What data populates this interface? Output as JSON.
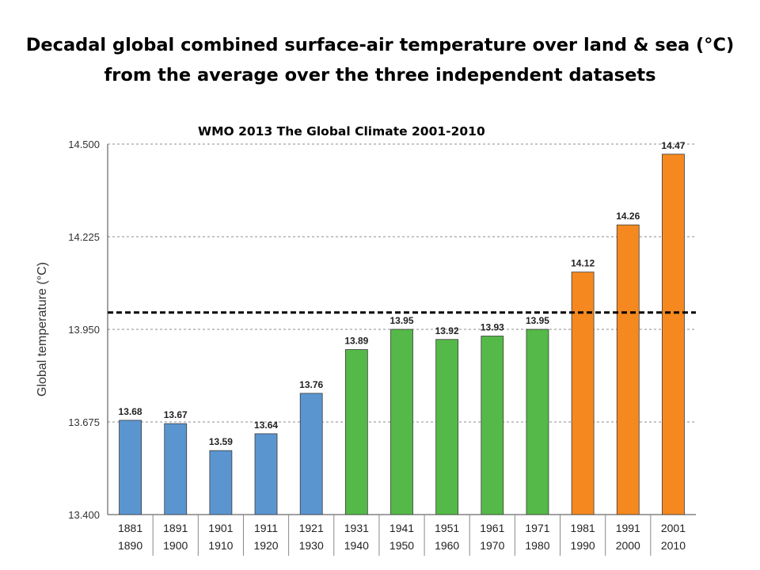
{
  "title_line1": "Decadal global combined surface-air temperature over  land & sea (°C)",
  "title_line2": "from the  average over the three  independent datasets",
  "subtitle": "WMO 2013  The Global Climate 2001-2010",
  "colors": {
    "blue": "#5b95d0",
    "green": "#54b948",
    "orange": "#f5891f"
  },
  "chart_data": {
    "type": "bar",
    "ylabel": "Global temperature (°C)",
    "ylim": [
      13.4,
      14.5
    ],
    "yticks": [
      "13.400",
      "13.675",
      "13.950",
      "14.225",
      "14.500"
    ],
    "reference_line": 14.0,
    "grid": true,
    "categories": [
      [
        "1881",
        "1890"
      ],
      [
        "1891",
        "1900"
      ],
      [
        "1901",
        "1910"
      ],
      [
        "1911",
        "1920"
      ],
      [
        "1921",
        "1930"
      ],
      [
        "1931",
        "1940"
      ],
      [
        "1941",
        "1950"
      ],
      [
        "1951",
        "1960"
      ],
      [
        "1961",
        "1970"
      ],
      [
        "1971",
        "1980"
      ],
      [
        "1981",
        "1990"
      ],
      [
        "1991",
        "2000"
      ],
      [
        "2001",
        "2010"
      ]
    ],
    "values": [
      13.68,
      13.67,
      13.59,
      13.64,
      13.76,
      13.89,
      13.95,
      13.92,
      13.93,
      13.95,
      14.12,
      14.26,
      14.47
    ],
    "labels": [
      "13.68",
      "13.67",
      "13.59",
      "13.64",
      "13.76",
      "13.89",
      "13.95",
      "13.92",
      "13.93",
      "13.95",
      "14.12",
      "14.26",
      "14.47"
    ],
    "bar_colors": [
      "blue",
      "blue",
      "blue",
      "blue",
      "blue",
      "green",
      "green",
      "green",
      "green",
      "green",
      "orange",
      "orange",
      "orange"
    ]
  }
}
